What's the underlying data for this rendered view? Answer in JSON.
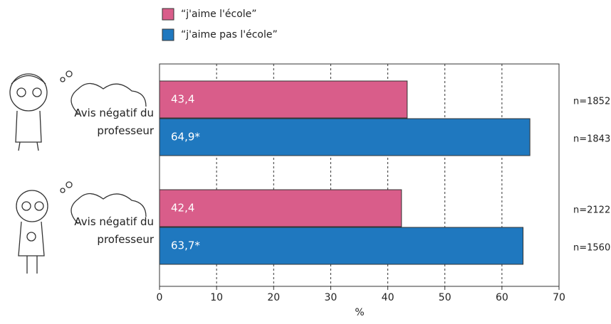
{
  "chart_data": {
    "type": "bar",
    "orientation": "horizontal",
    "categories": [
      "Avis négatif du professeur",
      "Avis négatif du professeur"
    ],
    "series": [
      {
        "name": "“j'aime l'école”",
        "color": "#d95d8a",
        "values": [
          43.4,
          42.4
        ],
        "value_labels": [
          "43,4",
          "42,4"
        ],
        "annotations": [
          "n=1852",
          "n=2122"
        ]
      },
      {
        "name": "“j'aime pas l'école”",
        "color": "#1f78bf",
        "values": [
          64.9,
          63.7
        ],
        "value_labels": [
          "64,9*",
          "63,7*"
        ],
        "annotations": [
          "n=1843",
          "n=1560"
        ]
      }
    ],
    "xlabel": "%",
    "xlim": [
      0,
      70
    ],
    "xticks": [
      0,
      10,
      20,
      30,
      40,
      50,
      60,
      70
    ],
    "grid": true
  }
}
